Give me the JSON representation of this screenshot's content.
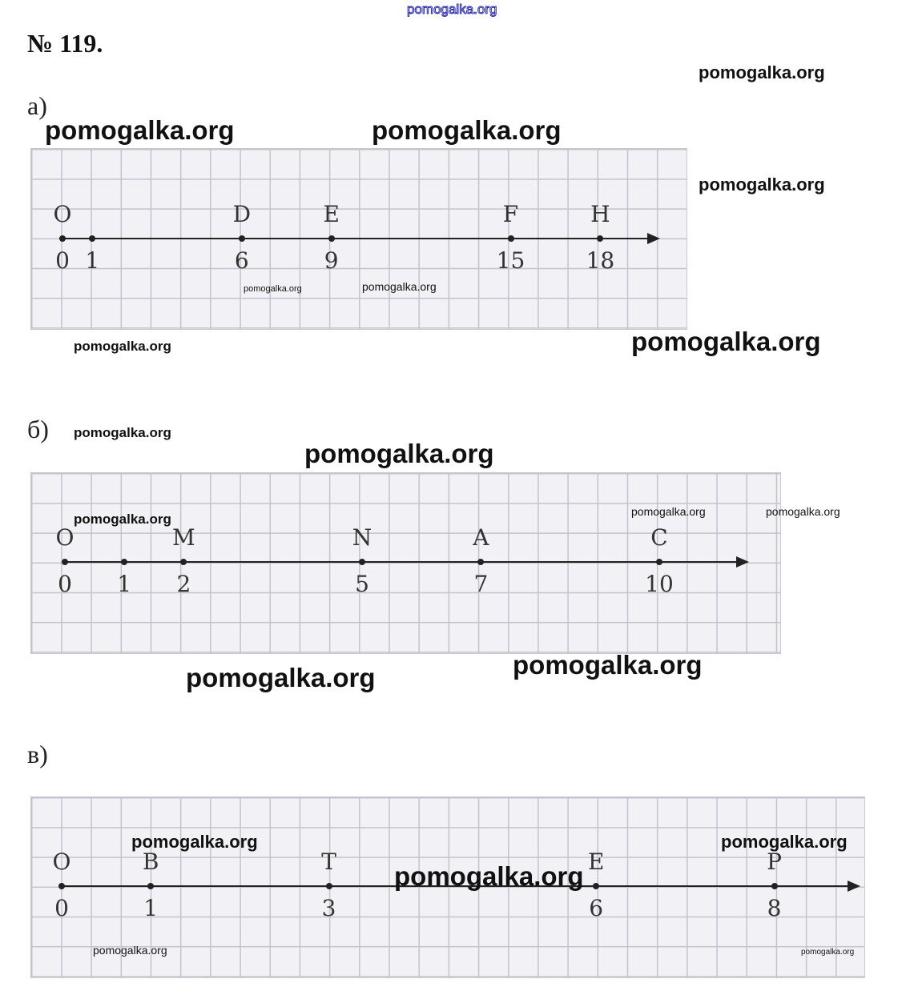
{
  "header": {
    "watermark_top": "pomogalka.org",
    "title": "№ 119."
  },
  "watermark": "pomogalka.org",
  "parts": [
    {
      "label": "а)",
      "points": [
        {
          "letter": "O",
          "value": 0
        },
        {
          "letter": "",
          "value": 1
        },
        {
          "letter": "D",
          "value": 6
        },
        {
          "letter": "E",
          "value": 9
        },
        {
          "letter": "F",
          "value": 15
        },
        {
          "letter": "H",
          "value": 18
        }
      ]
    },
    {
      "label": "б)",
      "points": [
        {
          "letter": "O",
          "value": 0
        },
        {
          "letter": "",
          "value": 1
        },
        {
          "letter": "M",
          "value": 2
        },
        {
          "letter": "N",
          "value": 5
        },
        {
          "letter": "A",
          "value": 7
        },
        {
          "letter": "C",
          "value": 10
        }
      ]
    },
    {
      "label": "в)",
      "points": [
        {
          "letter": "O",
          "value": 0
        },
        {
          "letter": "B",
          "value": 1
        },
        {
          "letter": "T",
          "value": 3
        },
        {
          "letter": "E",
          "value": 6
        },
        {
          "letter": "P",
          "value": 8
        }
      ]
    }
  ]
}
